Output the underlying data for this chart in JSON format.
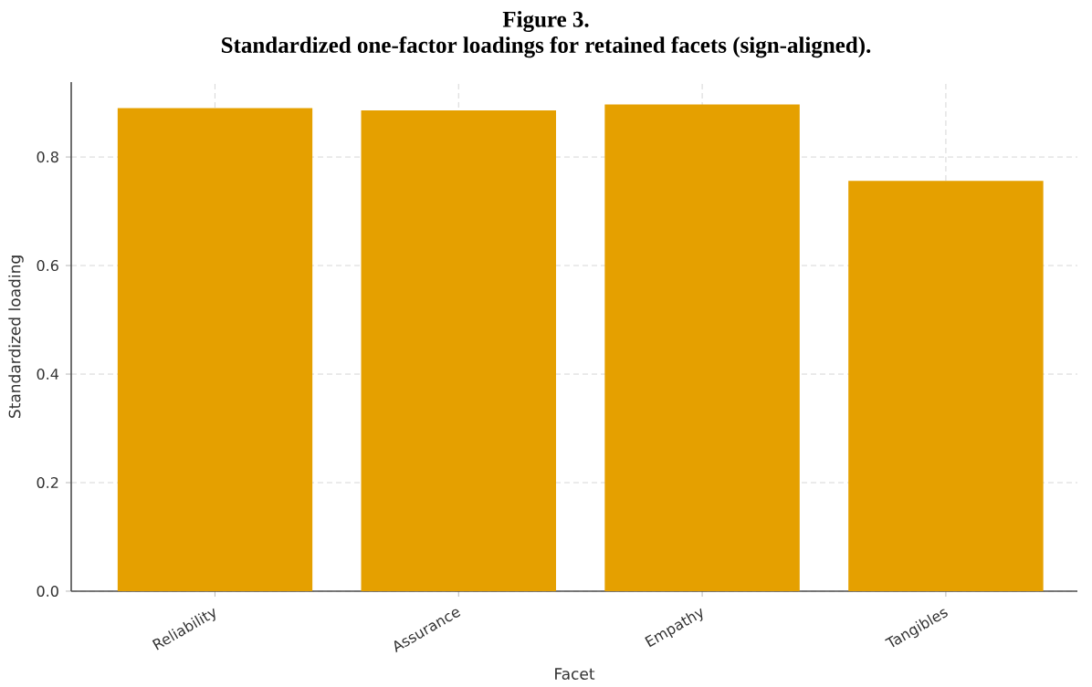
{
  "chart_data": {
    "type": "bar",
    "title": "Figure 3.",
    "subtitle": "Standardized one-factor loadings for retained facets (sign-aligned).",
    "xlabel": "Facet",
    "ylabel": "Standardized loading",
    "categories": [
      "Reliability",
      "Assurance",
      "Empathy",
      "Tangibles"
    ],
    "values": [
      0.89,
      0.886,
      0.897,
      0.756
    ],
    "color": "#e5a000",
    "ylim": [
      0,
      0.938
    ],
    "yticks": [
      {
        "value": 0,
        "label": "0.0"
      },
      0.2,
      0.4,
      0.6,
      0.8
    ],
    "grid": true
  }
}
